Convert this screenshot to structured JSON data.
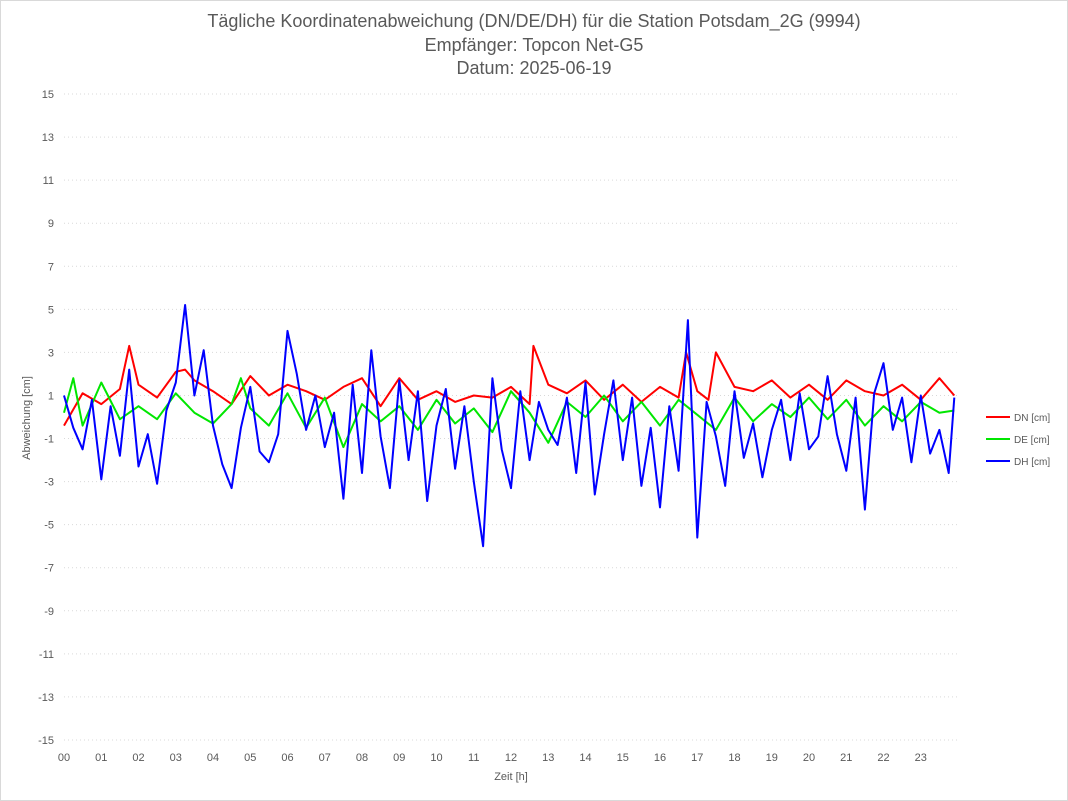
{
  "chart_data": {
    "type": "line",
    "title": "Tägliche Koordinatenabweichung (DN/DE/DH) für die Station Potsdam_2G (9994)",
    "subtitle": "Empfänger: Topcon Net-G5",
    "date_line": "Datum: 2025-06-19",
    "xlabel": "Zeit [h]",
    "ylabel": "Abweichung [cm]",
    "xlim": [
      0,
      24
    ],
    "ylim": [
      -15,
      15
    ],
    "y_ticks": [
      15,
      13,
      11,
      9,
      7,
      5,
      3,
      1,
      -1,
      -3,
      -5,
      -7,
      -9,
      -11,
      -13,
      -15
    ],
    "x_tick_labels": [
      "00",
      "01",
      "02",
      "03",
      "04",
      "05",
      "06",
      "07",
      "08",
      "09",
      "10",
      "11",
      "12",
      "13",
      "14",
      "15",
      "16",
      "17",
      "18",
      "19",
      "20",
      "21",
      "22",
      "23"
    ],
    "grid": "horizontal dotted",
    "legend_position": "right",
    "series": [
      {
        "name": "DN [cm]",
        "color": "#ff0000",
        "x": [
          0.0,
          0.5,
          1.0,
          1.5,
          1.75,
          2.0,
          2.5,
          3.0,
          3.25,
          3.5,
          4.0,
          4.5,
          5.0,
          5.5,
          6.0,
          6.5,
          7.0,
          7.5,
          8.0,
          8.5,
          9.0,
          9.5,
          10.0,
          10.5,
          11.0,
          11.5,
          12.0,
          12.5,
          12.6,
          13.0,
          13.5,
          14.0,
          14.5,
          15.0,
          15.5,
          16.0,
          16.5,
          16.7,
          17.0,
          17.3,
          17.5,
          18.0,
          18.5,
          19.0,
          19.5,
          20.0,
          20.5,
          21.0,
          21.5,
          22.0,
          22.5,
          23.0,
          23.5,
          23.9
        ],
        "y": [
          -0.4,
          1.1,
          0.6,
          1.3,
          3.3,
          1.5,
          0.9,
          2.1,
          2.2,
          1.7,
          1.2,
          0.6,
          1.9,
          1.0,
          1.5,
          1.2,
          0.8,
          1.4,
          1.8,
          0.5,
          1.8,
          0.8,
          1.2,
          0.7,
          1.0,
          0.9,
          1.4,
          0.6,
          3.3,
          1.5,
          1.1,
          1.7,
          0.8,
          1.5,
          0.7,
          1.4,
          0.9,
          3.0,
          1.2,
          0.8,
          3.0,
          1.4,
          1.2,
          1.7,
          0.9,
          1.5,
          0.8,
          1.7,
          1.2,
          1.0,
          1.5,
          0.8,
          1.8,
          1.0
        ]
      },
      {
        "name": "DE [cm]",
        "color": "#00e600",
        "x": [
          0.0,
          0.25,
          0.5,
          1.0,
          1.5,
          2.0,
          2.5,
          3.0,
          3.5,
          4.0,
          4.5,
          4.75,
          5.0,
          5.5,
          6.0,
          6.5,
          7.0,
          7.5,
          8.0,
          8.5,
          9.0,
          9.5,
          10.0,
          10.5,
          11.0,
          11.5,
          12.0,
          12.5,
          13.0,
          13.5,
          14.0,
          14.5,
          15.0,
          15.5,
          16.0,
          16.5,
          17.0,
          17.5,
          18.0,
          18.5,
          19.0,
          19.5,
          20.0,
          20.5,
          21.0,
          21.5,
          22.0,
          22.5,
          23.0,
          23.5,
          23.9
        ],
        "y": [
          0.2,
          1.8,
          -0.4,
          1.6,
          -0.1,
          0.5,
          -0.1,
          1.1,
          0.2,
          -0.3,
          0.6,
          1.8,
          0.4,
          -0.4,
          1.1,
          -0.5,
          0.9,
          -1.4,
          0.6,
          -0.2,
          0.5,
          -0.6,
          0.8,
          -0.3,
          0.4,
          -0.7,
          1.2,
          0.2,
          -1.2,
          0.7,
          0.0,
          1.0,
          -0.2,
          0.7,
          -0.4,
          0.8,
          0.1,
          -0.6,
          0.9,
          -0.2,
          0.6,
          0.0,
          0.9,
          -0.1,
          0.8,
          -0.4,
          0.5,
          -0.2,
          0.7,
          0.2,
          0.3
        ]
      },
      {
        "name": "DH [cm]",
        "color": "#0000ff",
        "x": [
          0.0,
          0.25,
          0.5,
          0.75,
          1.0,
          1.25,
          1.5,
          1.75,
          2.0,
          2.25,
          2.5,
          2.75,
          3.0,
          3.25,
          3.5,
          3.75,
          4.0,
          4.25,
          4.5,
          4.75,
          5.0,
          5.25,
          5.5,
          5.75,
          6.0,
          6.25,
          6.5,
          6.75,
          7.0,
          7.25,
          7.5,
          7.75,
          8.0,
          8.25,
          8.5,
          8.75,
          9.0,
          9.25,
          9.5,
          9.75,
          10.0,
          10.25,
          10.5,
          10.75,
          11.0,
          11.25,
          11.5,
          11.75,
          12.0,
          12.25,
          12.5,
          12.75,
          13.0,
          13.25,
          13.5,
          13.75,
          14.0,
          14.25,
          14.5,
          14.75,
          15.0,
          15.25,
          15.5,
          15.75,
          16.0,
          16.25,
          16.5,
          16.75,
          17.0,
          17.25,
          17.5,
          17.75,
          18.0,
          18.25,
          18.5,
          18.75,
          19.0,
          19.25,
          19.5,
          19.75,
          20.0,
          20.25,
          20.5,
          20.75,
          21.0,
          21.25,
          21.5,
          21.75,
          22.0,
          22.25,
          22.5,
          22.75,
          23.0,
          23.25,
          23.5,
          23.75,
          23.9
        ],
        "y": [
          1.0,
          -0.5,
          -1.5,
          0.8,
          -2.9,
          0.5,
          -1.8,
          2.2,
          -2.3,
          -0.8,
          -3.1,
          0.3,
          1.6,
          5.2,
          1.0,
          3.1,
          -0.4,
          -2.2,
          -3.3,
          -0.5,
          1.4,
          -1.6,
          -2.1,
          -0.8,
          4.0,
          2.0,
          -0.6,
          1.0,
          -1.4,
          0.2,
          -3.8,
          1.5,
          -2.6,
          3.1,
          -0.9,
          -3.3,
          1.7,
          -2.0,
          1.2,
          -3.9,
          -0.4,
          1.3,
          -2.4,
          0.5,
          -3.0,
          -6.0,
          1.8,
          -1.5,
          -3.3,
          1.2,
          -2.0,
          0.7,
          -0.6,
          -1.3,
          0.9,
          -2.6,
          1.6,
          -3.6,
          -0.8,
          1.7,
          -2.0,
          0.9,
          -3.2,
          -0.5,
          -4.2,
          0.5,
          -2.5,
          4.5,
          -5.6,
          0.7,
          -0.9,
          -3.2,
          1.2,
          -1.9,
          -0.3,
          -2.8,
          -0.6,
          0.8,
          -2.0,
          1.1,
          -1.5,
          -0.9,
          1.9,
          -0.8,
          -2.5,
          0.9,
          -4.3,
          1.1,
          2.5,
          -0.6,
          0.9,
          -2.1,
          1.0,
          -1.7,
          -0.6,
          -2.6,
          0.9
        ]
      }
    ]
  }
}
